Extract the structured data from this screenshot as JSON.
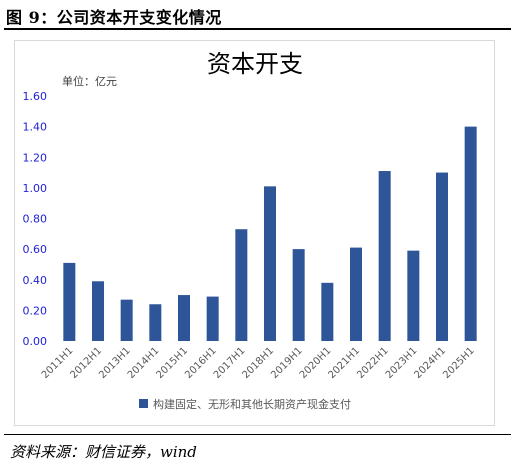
{
  "figure": {
    "caption": "图 9：公司资本开支变化情况",
    "source": "资料来源：财信证券，wind"
  },
  "chart_data": {
    "type": "bar",
    "title": "资本开支",
    "unit_label": "单位：亿元",
    "categories": [
      "2011H1",
      "2012H1",
      "2013H1",
      "2014H1",
      "2015H1",
      "2016H1",
      "2017H1",
      "2018H1",
      "2019H1",
      "2020H1",
      "2021H1",
      "2022H1",
      "2023H1",
      "2024H1",
      "2025H1"
    ],
    "series": [
      {
        "name": "构建固定、无形和其他长期资产现金支付",
        "values": [
          0.51,
          0.39,
          0.27,
          0.24,
          0.3,
          0.29,
          0.73,
          1.01,
          0.6,
          0.38,
          0.61,
          1.11,
          0.59,
          1.1,
          1.4
        ]
      }
    ],
    "ylim": [
      0,
      1.6
    ],
    "yticks": [
      "0.00",
      "0.20",
      "0.40",
      "0.60",
      "0.80",
      "1.00",
      "1.20",
      "1.40",
      "1.60"
    ],
    "legend_position": "bottom",
    "colors": {
      "bar": "#2e5597",
      "axis_text": "#595959",
      "ytick_text": "#1f1fd6"
    }
  }
}
